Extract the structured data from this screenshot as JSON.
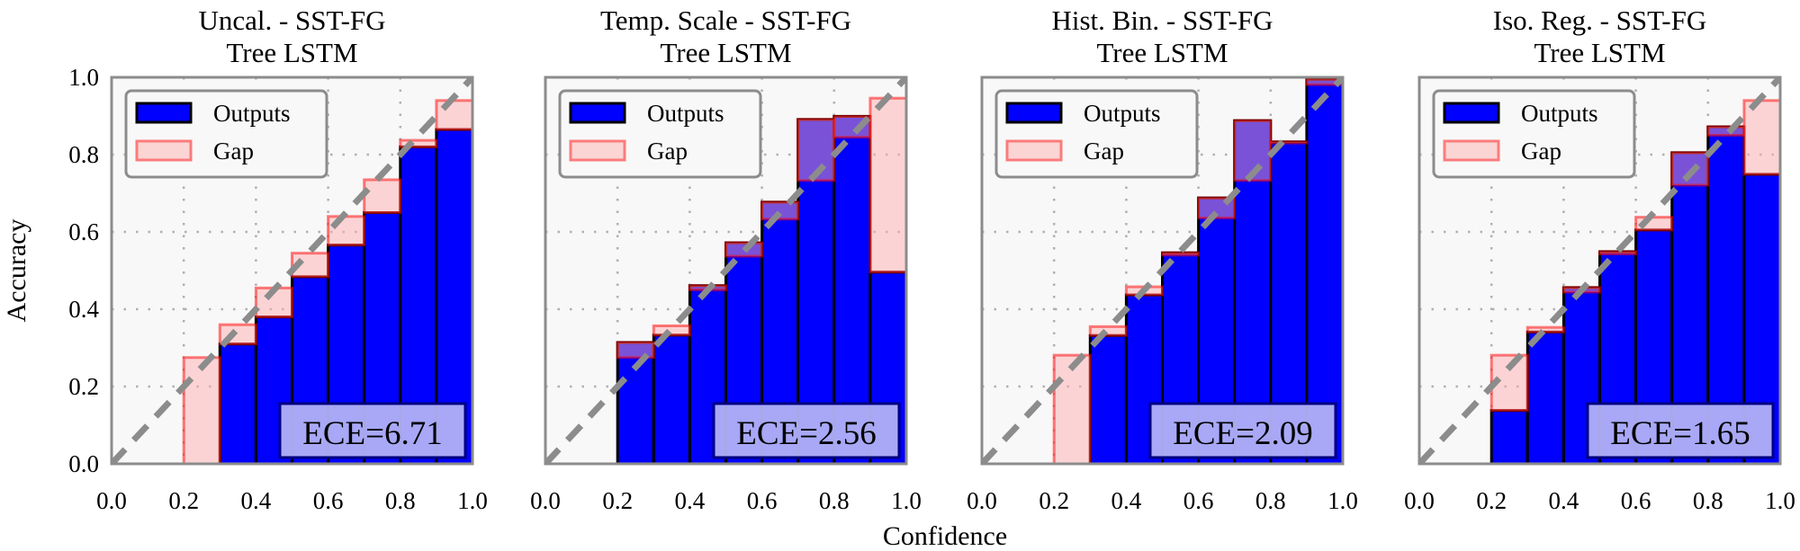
{
  "chart_data": [
    {
      "type": "bar",
      "title": [
        "Uncal. - SST-FG",
        "Tree LSTM"
      ],
      "bins": [
        0.2,
        0.3,
        0.4,
        0.5,
        0.6,
        0.7,
        0.8,
        0.9
      ],
      "outputs": [
        0.0,
        0.31,
        0.38,
        0.484,
        0.566,
        0.65,
        0.82,
        0.865
      ],
      "gap_to": [
        0.275,
        0.36,
        0.455,
        0.545,
        0.64,
        0.735,
        0.837,
        0.94
      ],
      "ece_label": "ECE=6.71"
    },
    {
      "type": "bar",
      "title": [
        "Temp. Scale - SST-FG",
        "Tree LSTM"
      ],
      "bins": [
        0.2,
        0.3,
        0.4,
        0.5,
        0.6,
        0.7,
        0.8,
        0.9
      ],
      "outputs": [
        0.314,
        0.333,
        0.461,
        0.572,
        0.677,
        0.891,
        0.899,
        0.496
      ],
      "gap_to": [
        0.275,
        0.357,
        0.45,
        0.537,
        0.633,
        0.733,
        0.845,
        0.946
      ],
      "ece_label": "ECE=2.56"
    },
    {
      "type": "bar",
      "title": [
        "Hist. Bin. - SST-FG",
        "Tree LSTM"
      ],
      "bins": [
        0.2,
        0.3,
        0.4,
        0.5,
        0.6,
        0.7,
        0.8,
        0.9
      ],
      "outputs": [
        0.0,
        0.332,
        0.437,
        0.546,
        0.688,
        0.888,
        0.833,
        0.995
      ],
      "gap_to": [
        0.281,
        0.355,
        0.458,
        0.54,
        0.636,
        0.733,
        0.83,
        0.981
      ],
      "ece_label": "ECE=2.09"
    },
    {
      "type": "bar",
      "title": [
        "Iso. Reg. - SST-FG",
        "Tree LSTM"
      ],
      "bins": [
        0.2,
        0.3,
        0.4,
        0.5,
        0.6,
        0.7,
        0.8,
        0.9
      ],
      "outputs": [
        0.138,
        0.341,
        0.456,
        0.549,
        0.605,
        0.805,
        0.872,
        0.749
      ],
      "gap_to": [
        0.281,
        0.353,
        0.444,
        0.543,
        0.638,
        0.721,
        0.85,
        0.94
      ],
      "ece_label": "ECE=1.65"
    }
  ],
  "shared": {
    "xlabel": "Confidence",
    "ylabel": "Accuracy",
    "xlim": [
      0,
      1
    ],
    "ylim": [
      0,
      1
    ],
    "bin_width": 0.1,
    "xticks": [
      "0.0",
      "0.2",
      "0.4",
      "0.6",
      "0.8",
      "1.0"
    ],
    "yticks": [
      "0.0",
      "0.2",
      "0.4",
      "0.6",
      "0.8",
      "1.0"
    ],
    "grid": true,
    "legend": {
      "position": "top-left",
      "items": [
        "Outputs",
        "Gap"
      ]
    },
    "ece_position": "bottom-right",
    "colors": {
      "outputs": "#0000ff",
      "outputs_edge": "#000000",
      "gap_fill": "rgba(255,171,173,0.48)",
      "gap_edge": "rgba(255,0,0,0.5)",
      "diagonal": "#8c8c8c",
      "axes_bg": "#f8f8f8",
      "ece_box": "#b1b1f7"
    }
  }
}
